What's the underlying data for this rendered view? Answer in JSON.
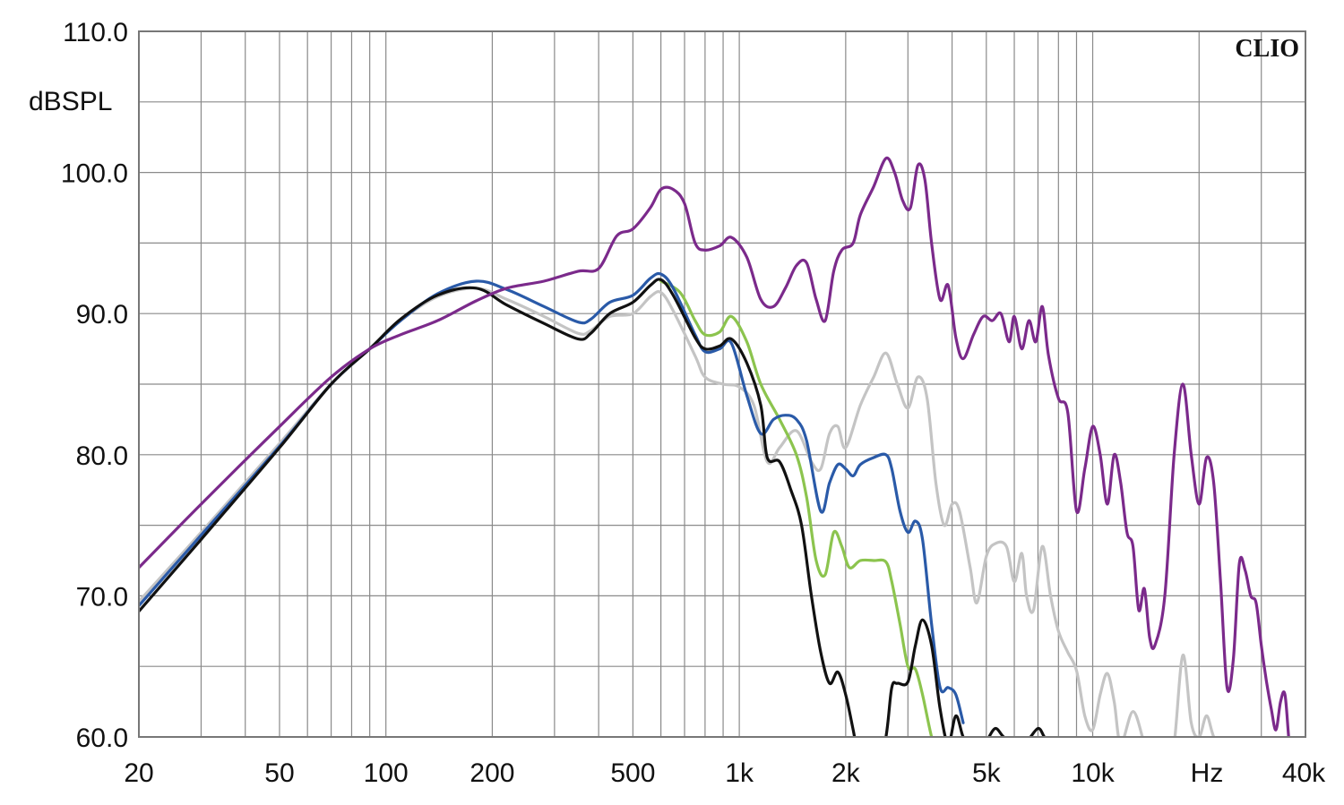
{
  "chart_data": {
    "type": "line",
    "title": "",
    "brand": "CLIO",
    "ylabel": "dBSPL",
    "xlabel": "Hz",
    "x_scale": "log",
    "xlim": [
      20,
      40000
    ],
    "ylim": [
      60,
      110
    ],
    "grid": true,
    "y_ticks": [
      {
        "value": 110,
        "label": "110.0"
      },
      {
        "value": 100,
        "label": "100.0"
      },
      {
        "value": 90,
        "label": "90.0"
      },
      {
        "value": 80,
        "label": "80.0"
      },
      {
        "value": 70,
        "label": "70.0"
      },
      {
        "value": 60,
        "label": "60.0"
      }
    ],
    "y_grid_step": 5,
    "x_ticks": [
      {
        "value": 20,
        "label": "20"
      },
      {
        "value": 50,
        "label": "50"
      },
      {
        "value": 100,
        "label": "100"
      },
      {
        "value": 200,
        "label": "200"
      },
      {
        "value": 500,
        "label": "500"
      },
      {
        "value": 1000,
        "label": "1k"
      },
      {
        "value": 2000,
        "label": "2k"
      },
      {
        "value": 5000,
        "label": "5k"
      },
      {
        "value": 10000,
        "label": "10k"
      },
      {
        "value": 40000,
        "label": "40k"
      }
    ],
    "series": [
      {
        "color": "#c4c4c4",
        "points": [
          [
            20,
            69.6
          ],
          [
            30,
            74.5
          ],
          [
            50,
            80.8
          ],
          [
            70,
            85
          ],
          [
            90,
            87.5
          ],
          [
            110,
            89.5
          ],
          [
            140,
            91.2
          ],
          [
            180,
            91.8
          ],
          [
            220,
            91
          ],
          [
            280,
            89.8
          ],
          [
            350,
            88.6
          ],
          [
            380,
            88.8
          ],
          [
            430,
            89.8
          ],
          [
            500,
            90
          ],
          [
            560,
            91.2
          ],
          [
            600,
            91.5
          ],
          [
            650,
            90.2
          ],
          [
            750,
            87
          ],
          [
            800,
            85.5
          ],
          [
            900,
            85
          ],
          [
            1000,
            84.8
          ],
          [
            1100,
            83.5
          ],
          [
            1200,
            79.5
          ],
          [
            1300,
            80.5
          ],
          [
            1450,
            81.7
          ],
          [
            1600,
            79.5
          ],
          [
            1700,
            79
          ],
          [
            1800,
            81.5
          ],
          [
            1900,
            82
          ],
          [
            2000,
            80.5
          ],
          [
            2200,
            83.5
          ],
          [
            2400,
            85.5
          ],
          [
            2600,
            87.2
          ],
          [
            2800,
            85
          ],
          [
            3000,
            83.3
          ],
          [
            3200,
            85.5
          ],
          [
            3400,
            84
          ],
          [
            3600,
            78
          ],
          [
            3800,
            75
          ],
          [
            4000,
            76.5
          ],
          [
            4200,
            76
          ],
          [
            4500,
            72
          ],
          [
            4700,
            69.5
          ],
          [
            5000,
            72.8
          ],
          [
            5300,
            73.7
          ],
          [
            5700,
            73.5
          ],
          [
            6000,
            71
          ],
          [
            6300,
            73
          ],
          [
            6500,
            70
          ],
          [
            6800,
            69
          ],
          [
            7200,
            73.5
          ],
          [
            7600,
            70
          ],
          [
            8000,
            67.5
          ],
          [
            8500,
            66
          ],
          [
            9000,
            64.7
          ],
          [
            9500,
            61.5
          ],
          [
            10000,
            60.5
          ],
          [
            10500,
            63
          ],
          [
            11000,
            64.5
          ],
          [
            11500,
            62.5
          ],
          [
            12000,
            59.5
          ],
          [
            13000,
            61.8
          ],
          [
            14000,
            59.5
          ],
          [
            15000,
            57
          ],
          [
            16000,
            56.5
          ],
          [
            17000,
            59.5
          ],
          [
            18000,
            65.8
          ],
          [
            19000,
            61
          ],
          [
            20000,
            60
          ],
          [
            21000,
            61.5
          ],
          [
            22000,
            60
          ],
          [
            24000,
            58
          ]
        ]
      },
      {
        "color": "#8cc44e",
        "points": [
          [
            600,
            92.3
          ],
          [
            680,
            91.5
          ],
          [
            750,
            89.5
          ],
          [
            800,
            88.5
          ],
          [
            880,
            88.7
          ],
          [
            950,
            89.8
          ],
          [
            1050,
            88
          ],
          [
            1150,
            85
          ],
          [
            1300,
            82.5
          ],
          [
            1450,
            80
          ],
          [
            1550,
            77
          ],
          [
            1650,
            72.5
          ],
          [
            1750,
            71.5
          ],
          [
            1850,
            74.5
          ],
          [
            1950,
            73.5
          ],
          [
            2050,
            72
          ],
          [
            2200,
            72.5
          ],
          [
            2400,
            72.5
          ],
          [
            2600,
            72.4
          ],
          [
            2700,
            71
          ],
          [
            2850,
            68
          ],
          [
            3000,
            65
          ],
          [
            3150,
            64.8
          ],
          [
            3300,
            63
          ],
          [
            3500,
            60
          ],
          [
            3700,
            58
          ]
        ]
      },
      {
        "color": "#2a5aa8",
        "points": [
          [
            20,
            69.3
          ],
          [
            30,
            74.3
          ],
          [
            50,
            80.6
          ],
          [
            70,
            85
          ],
          [
            90,
            87.5
          ],
          [
            110,
            89.5
          ],
          [
            140,
            91.4
          ],
          [
            180,
            92.3
          ],
          [
            220,
            91.7
          ],
          [
            280,
            90.5
          ],
          [
            350,
            89.4
          ],
          [
            380,
            89.6
          ],
          [
            430,
            90.8
          ],
          [
            500,
            91.3
          ],
          [
            560,
            92.5
          ],
          [
            600,
            92.8
          ],
          [
            650,
            91.8
          ],
          [
            750,
            88.5
          ],
          [
            800,
            87.3
          ],
          [
            880,
            87.5
          ],
          [
            950,
            87.9
          ],
          [
            1050,
            84.2
          ],
          [
            1150,
            81.5
          ],
          [
            1250,
            82.5
          ],
          [
            1350,
            82.8
          ],
          [
            1450,
            82.5
          ],
          [
            1550,
            81
          ],
          [
            1700,
            76
          ],
          [
            1800,
            78
          ],
          [
            1900,
            79.3
          ],
          [
            2000,
            79
          ],
          [
            2100,
            78.5
          ],
          [
            2200,
            79.3
          ],
          [
            2400,
            79.8
          ],
          [
            2600,
            80
          ],
          [
            2700,
            79
          ],
          [
            2850,
            76
          ],
          [
            3000,
            74.5
          ],
          [
            3150,
            75.3
          ],
          [
            3300,
            74
          ],
          [
            3500,
            68
          ],
          [
            3700,
            63.5
          ],
          [
            3900,
            63.5
          ],
          [
            4100,
            63
          ],
          [
            4300,
            61
          ]
        ]
      },
      {
        "color": "#111111",
        "points": [
          [
            20,
            68.9
          ],
          [
            30,
            74
          ],
          [
            50,
            80.5
          ],
          [
            70,
            85
          ],
          [
            90,
            87.5
          ],
          [
            110,
            89.6
          ],
          [
            140,
            91.3
          ],
          [
            180,
            91.8
          ],
          [
            220,
            90.6
          ],
          [
            280,
            89.3
          ],
          [
            350,
            88.2
          ],
          [
            380,
            88.6
          ],
          [
            430,
            90
          ],
          [
            500,
            90.8
          ],
          [
            560,
            92
          ],
          [
            600,
            92.4
          ],
          [
            650,
            91.3
          ],
          [
            750,
            88.3
          ],
          [
            800,
            87.5
          ],
          [
            880,
            87.7
          ],
          [
            950,
            88.2
          ],
          [
            1050,
            86.5
          ],
          [
            1150,
            83.5
          ],
          [
            1200,
            79.8
          ],
          [
            1300,
            79.5
          ],
          [
            1400,
            77.5
          ],
          [
            1500,
            75
          ],
          [
            1600,
            70
          ],
          [
            1700,
            66
          ],
          [
            1800,
            63.8
          ],
          [
            1900,
            64.6
          ],
          [
            2000,
            63
          ],
          [
            2100,
            60.5
          ],
          [
            2200,
            58
          ],
          [
            2400,
            56
          ],
          [
            2600,
            60
          ],
          [
            2700,
            63.5
          ],
          [
            2800,
            63.8
          ],
          [
            3000,
            63.9
          ],
          [
            3150,
            66.5
          ],
          [
            3300,
            68.3
          ],
          [
            3500,
            66.5
          ],
          [
            3700,
            62
          ],
          [
            3900,
            59.5
          ],
          [
            4100,
            61.5
          ],
          [
            4300,
            60
          ],
          [
            4500,
            59.5
          ],
          [
            4800,
            59.5
          ],
          [
            5000,
            59.7
          ],
          [
            5300,
            60.6
          ],
          [
            5600,
            60
          ],
          [
            6000,
            59.6
          ],
          [
            6500,
            59.7
          ],
          [
            7000,
            60.6
          ],
          [
            7300,
            60
          ],
          [
            7600,
            59.5
          ]
        ]
      },
      {
        "color": "#7b2a8b",
        "points": [
          [
            20,
            72
          ],
          [
            30,
            76.5
          ],
          [
            50,
            82
          ],
          [
            70,
            85.5
          ],
          [
            90,
            87.5
          ],
          [
            110,
            88.5
          ],
          [
            140,
            89.5
          ],
          [
            180,
            90.9
          ],
          [
            220,
            91.8
          ],
          [
            280,
            92.3
          ],
          [
            350,
            93
          ],
          [
            400,
            93.2
          ],
          [
            450,
            95.5
          ],
          [
            500,
            96
          ],
          [
            560,
            97.5
          ],
          [
            600,
            98.8
          ],
          [
            650,
            98.8
          ],
          [
            700,
            97.8
          ],
          [
            750,
            95
          ],
          [
            800,
            94.5
          ],
          [
            880,
            94.8
          ],
          [
            950,
            95.4
          ],
          [
            1050,
            94
          ],
          [
            1150,
            91
          ],
          [
            1250,
            90.5
          ],
          [
            1350,
            91.8
          ],
          [
            1450,
            93.4
          ],
          [
            1550,
            93.6
          ],
          [
            1650,
            91
          ],
          [
            1750,
            89.5
          ],
          [
            1850,
            93
          ],
          [
            1950,
            94.5
          ],
          [
            2100,
            95
          ],
          [
            2200,
            97
          ],
          [
            2400,
            99
          ],
          [
            2600,
            101
          ],
          [
            2750,
            100
          ],
          [
            2900,
            98
          ],
          [
            3050,
            97.5
          ],
          [
            3200,
            100.5
          ],
          [
            3350,
            99.5
          ],
          [
            3500,
            95
          ],
          [
            3700,
            91
          ],
          [
            3900,
            92
          ],
          [
            4100,
            88.3
          ],
          [
            4300,
            86.8
          ],
          [
            4600,
            88.5
          ],
          [
            4900,
            89.8
          ],
          [
            5200,
            89.5
          ],
          [
            5500,
            90
          ],
          [
            5800,
            88
          ],
          [
            6000,
            89.8
          ],
          [
            6300,
            87.5
          ],
          [
            6600,
            89.5
          ],
          [
            6900,
            88
          ],
          [
            7200,
            90.5
          ],
          [
            7500,
            87
          ],
          [
            8000,
            84
          ],
          [
            8500,
            83
          ],
          [
            9000,
            76
          ],
          [
            9500,
            79
          ],
          [
            10000,
            82
          ],
          [
            10500,
            80
          ],
          [
            11000,
            76.5
          ],
          [
            11500,
            80
          ],
          [
            12000,
            78
          ],
          [
            12500,
            74.5
          ],
          [
            13000,
            73.5
          ],
          [
            13500,
            69
          ],
          [
            14000,
            70.5
          ],
          [
            14500,
            67
          ],
          [
            15000,
            66.5
          ],
          [
            16000,
            70
          ],
          [
            17000,
            80
          ],
          [
            18000,
            85
          ],
          [
            19000,
            80
          ],
          [
            20000,
            76.5
          ],
          [
            21000,
            79.8
          ],
          [
            22000,
            78
          ],
          [
            23000,
            71
          ],
          [
            24000,
            63.5
          ],
          [
            25000,
            65.5
          ],
          [
            26000,
            72.3
          ],
          [
            27000,
            71.8
          ],
          [
            28000,
            70
          ],
          [
            29000,
            69.5
          ],
          [
            30000,
            66.5
          ],
          [
            31000,
            64
          ],
          [
            32000,
            62
          ],
          [
            33000,
            60.5
          ],
          [
            34000,
            62.5
          ],
          [
            35000,
            63
          ],
          [
            36000,
            59.5
          ],
          [
            37000,
            58
          ]
        ]
      }
    ]
  }
}
